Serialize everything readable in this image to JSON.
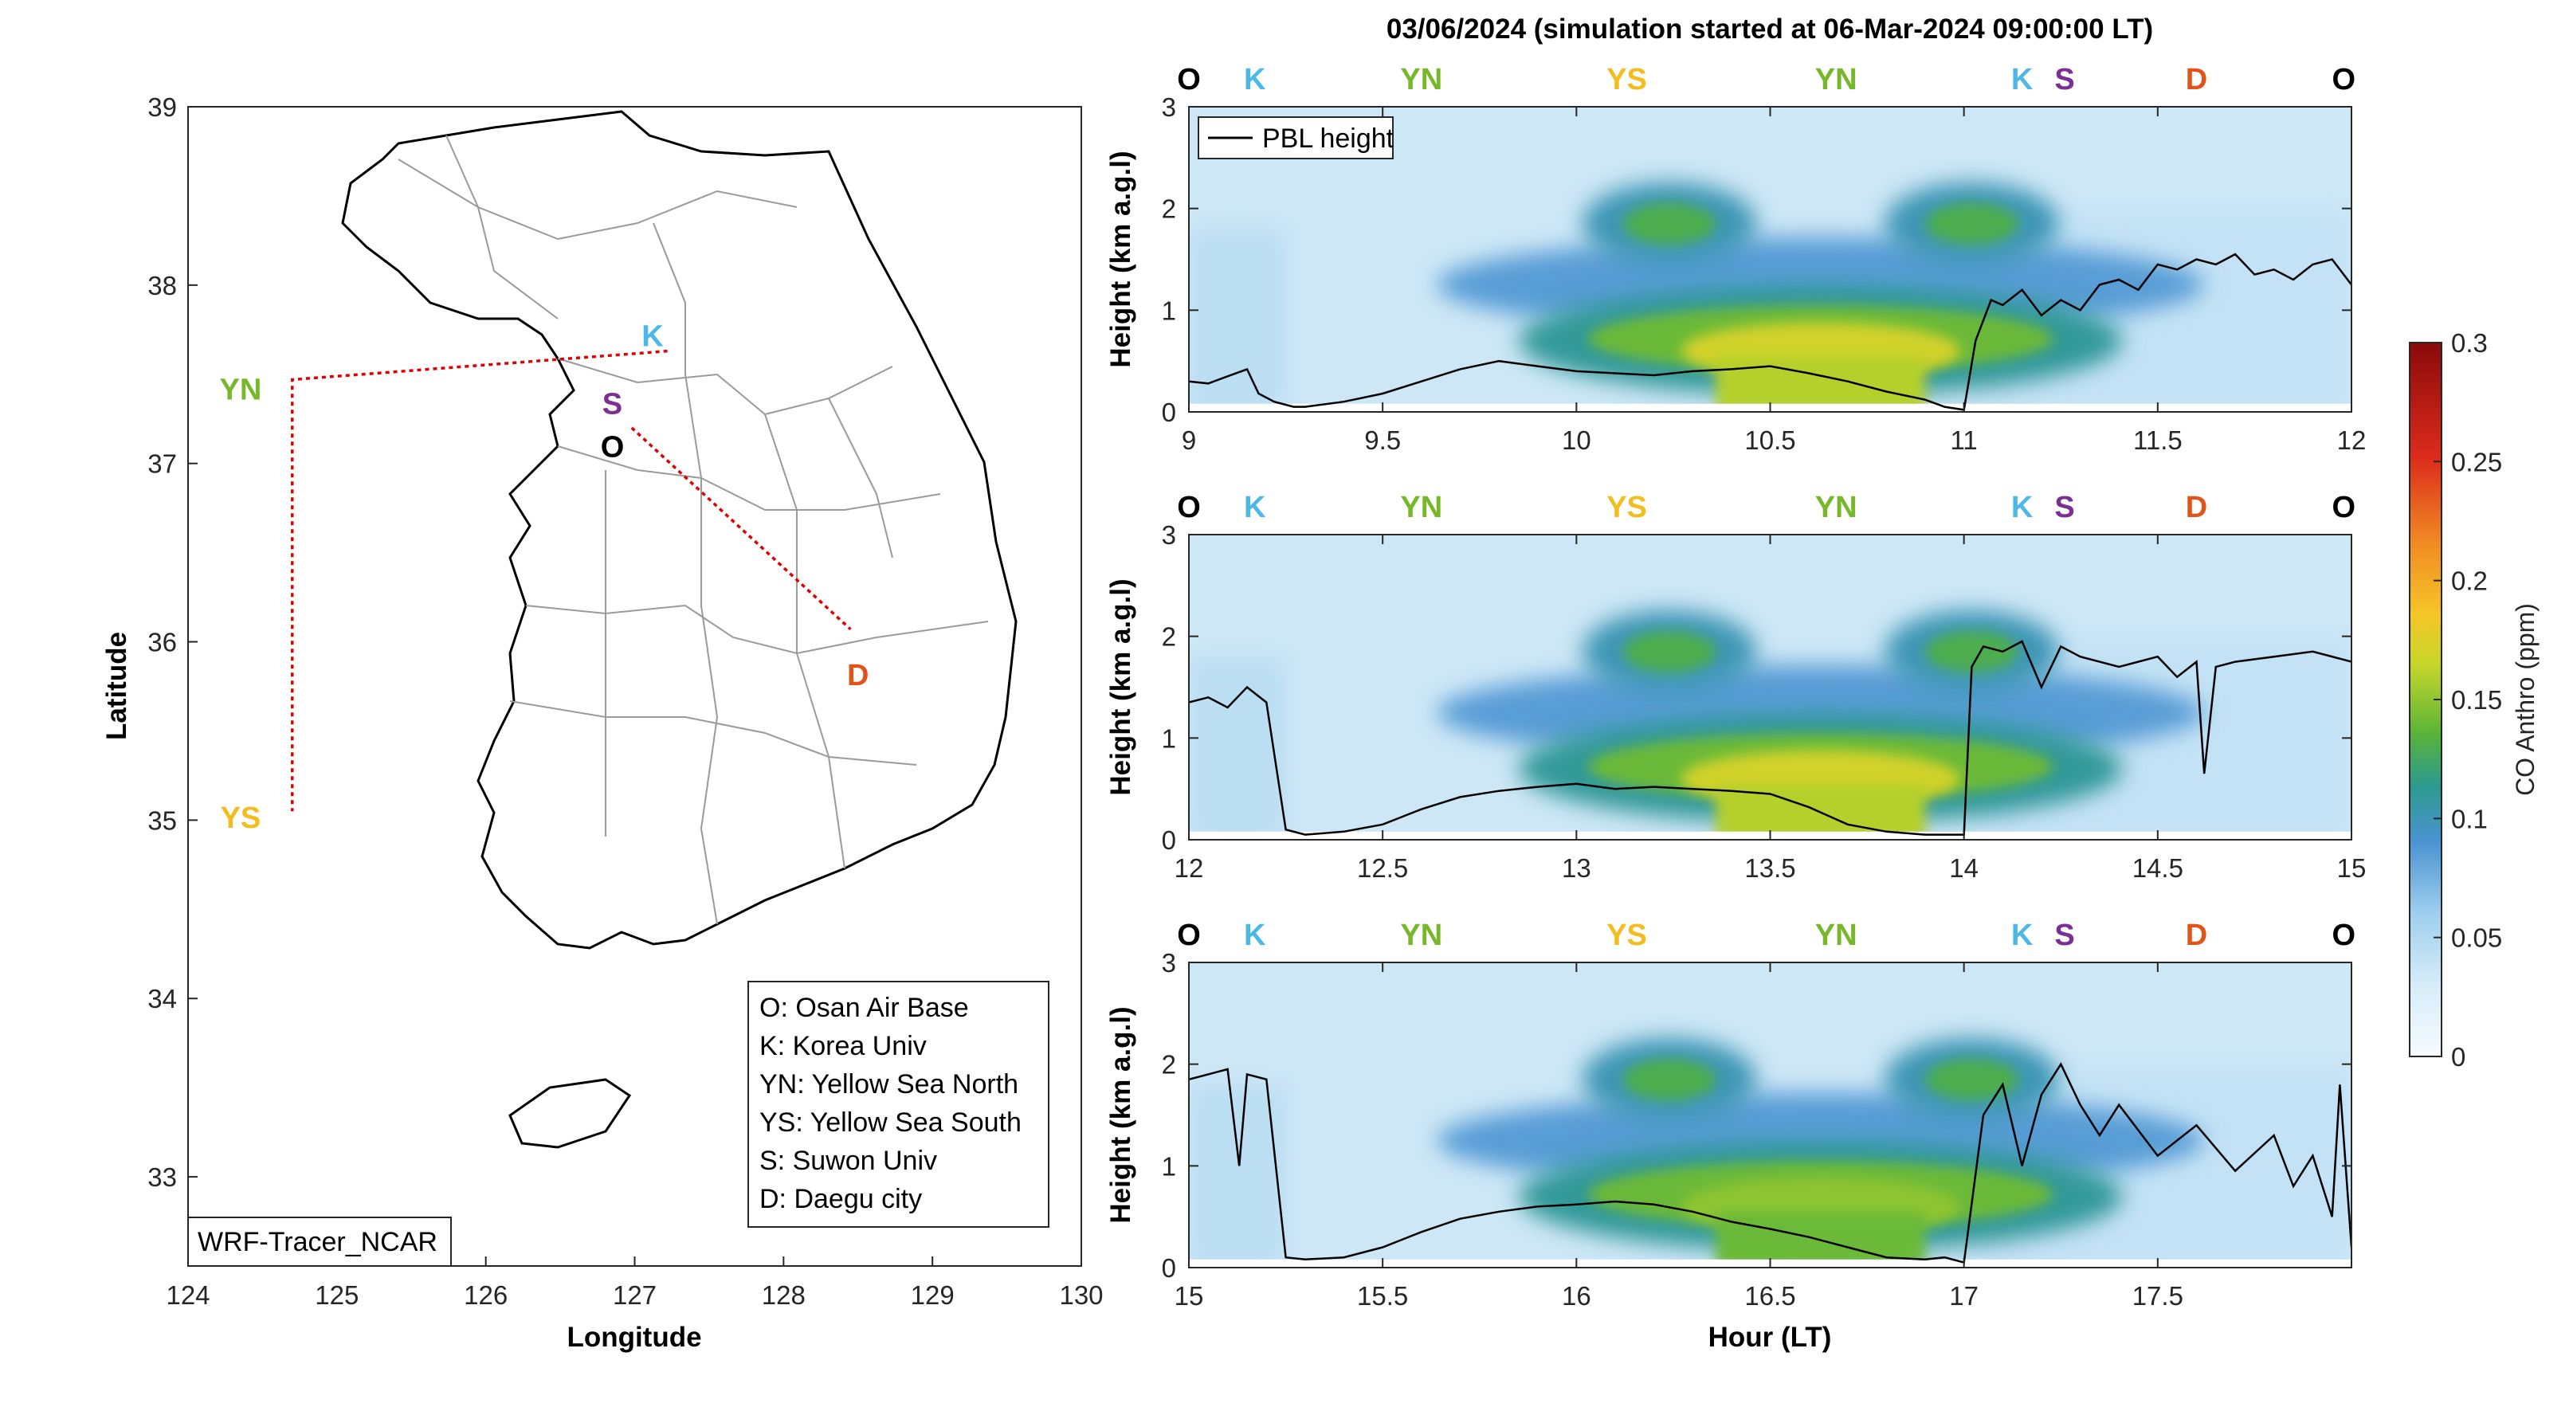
{
  "colors": {
    "O": "#000000",
    "K": "#4db8e6",
    "YN": "#76b82a",
    "YS": "#f2be1f",
    "S": "#7b2f95",
    "D": "#e0541a",
    "route": "#e00000",
    "pbl": "#000000"
  },
  "map": {
    "xlabel": "Longitude",
    "ylabel": "Latitude",
    "xticks": [
      "124",
      "125",
      "126",
      "127",
      "128",
      "129",
      "130"
    ],
    "yticks": [
      "39",
      "38",
      "37",
      "36",
      "35",
      "34",
      "33"
    ],
    "xlim": [
      124,
      130
    ],
    "ylim": [
      32.5,
      39
    ],
    "model_label": "WRF-Tracer_NCAR",
    "sites": [
      {
        "code": "O",
        "lon": 126.85,
        "lat": 37.1
      },
      {
        "code": "K",
        "lon": 127.12,
        "lat": 37.72
      },
      {
        "code": "YN",
        "lon": 123.55,
        "lat": 37.42
      },
      {
        "code": "YS",
        "lon": 123.55,
        "lat": 35.02
      },
      {
        "code": "S",
        "lon": 126.85,
        "lat": 37.34
      },
      {
        "code": "D",
        "lon": 128.5,
        "lat": 35.82
      }
    ],
    "route": [
      [
        127.22,
        37.63
      ],
      [
        124.7,
        37.47
      ],
      [
        124.7,
        35.05
      ]
    ],
    "route2": [
      [
        126.98,
        37.2
      ],
      [
        128.45,
        36.07
      ]
    ],
    "legend": [
      "O: Osan Air Base",
      "K: Korea Univ",
      "YN: Yellow Sea North",
      "YS: Yellow Sea South",
      "S: Suwon Univ",
      "D: Daegu city"
    ]
  },
  "title": "03/06/2024 (simulation started at 06-Mar-2024 09:00:00 LT)",
  "legend_pbl": "PBL height",
  "ylabel": "Height (km a.g.l)",
  "xlabel": "Hour (LT)",
  "colorbar": {
    "label": "CO Anthro (ppm)",
    "ticks": [
      "0",
      "0.05",
      "0.1",
      "0.15",
      "0.2",
      "0.25",
      "0.3"
    ],
    "range": [
      0,
      0.3
    ]
  },
  "chart_data": {
    "type": "heatmap",
    "yticks": [
      "0",
      "1",
      "2",
      "3"
    ],
    "ylim": [
      0,
      3
    ],
    "panels": [
      {
        "xlim": [
          9,
          12
        ],
        "xticks": [
          "9",
          "9.5",
          "10",
          "10.5",
          "11",
          "11.5",
          "12"
        ],
        "site_labels": [
          {
            "code": "O",
            "x": 9.0
          },
          {
            "code": "K",
            "x": 9.17
          },
          {
            "code": "YN",
            "x": 9.6
          },
          {
            "code": "YS",
            "x": 10.13
          },
          {
            "code": "YN",
            "x": 10.67
          },
          {
            "code": "K",
            "x": 11.15
          },
          {
            "code": "S",
            "x": 11.26
          },
          {
            "code": "D",
            "x": 11.6
          },
          {
            "code": "O",
            "x": 11.98
          }
        ],
        "pbl_x": [
          9.0,
          9.05,
          9.1,
          9.15,
          9.18,
          9.22,
          9.27,
          9.3,
          9.4,
          9.5,
          9.6,
          9.7,
          9.8,
          9.9,
          10.0,
          10.1,
          10.2,
          10.3,
          10.4,
          10.5,
          10.6,
          10.7,
          10.8,
          10.9,
          10.95,
          11.0,
          11.03,
          11.07,
          11.1,
          11.15,
          11.2,
          11.25,
          11.3,
          11.35,
          11.4,
          11.45,
          11.5,
          11.55,
          11.6,
          11.65,
          11.7,
          11.75,
          11.8,
          11.85,
          11.9,
          11.95,
          12.0
        ],
        "pbl_y": [
          0.3,
          0.28,
          0.35,
          0.42,
          0.18,
          0.1,
          0.05,
          0.05,
          0.1,
          0.18,
          0.3,
          0.42,
          0.5,
          0.45,
          0.4,
          0.38,
          0.36,
          0.4,
          0.42,
          0.45,
          0.38,
          0.3,
          0.2,
          0.12,
          0.05,
          0.02,
          0.7,
          1.1,
          1.05,
          1.2,
          0.95,
          1.1,
          1.0,
          1.25,
          1.3,
          1.2,
          1.45,
          1.4,
          1.5,
          1.45,
          1.55,
          1.35,
          1.4,
          1.3,
          1.45,
          1.5,
          1.25
        ],
        "max_conc": 0.17
      },
      {
        "xlim": [
          12,
          15
        ],
        "xticks": [
          "12",
          "12.5",
          "13",
          "13.5",
          "14",
          "14.5",
          "15"
        ],
        "site_labels": [
          {
            "code": "O",
            "x": 12.0
          },
          {
            "code": "K",
            "x": 12.17
          },
          {
            "code": "YN",
            "x": 12.6
          },
          {
            "code": "YS",
            "x": 13.13
          },
          {
            "code": "YN",
            "x": 13.67
          },
          {
            "code": "K",
            "x": 14.15
          },
          {
            "code": "S",
            "x": 14.26
          },
          {
            "code": "D",
            "x": 14.6
          },
          {
            "code": "O",
            "x": 14.98
          }
        ],
        "pbl_x": [
          12.0,
          12.05,
          12.1,
          12.15,
          12.2,
          12.25,
          12.3,
          12.4,
          12.5,
          12.6,
          12.7,
          12.8,
          12.9,
          13.0,
          13.1,
          13.2,
          13.3,
          13.4,
          13.5,
          13.6,
          13.7,
          13.8,
          13.9,
          14.0,
          14.02,
          14.05,
          14.1,
          14.15,
          14.2,
          14.25,
          14.3,
          14.4,
          14.5,
          14.55,
          14.6,
          14.62,
          14.65,
          14.7,
          14.8,
          14.9,
          15.0
        ],
        "pbl_y": [
          1.35,
          1.4,
          1.3,
          1.5,
          1.35,
          0.1,
          0.05,
          0.08,
          0.15,
          0.3,
          0.42,
          0.48,
          0.52,
          0.55,
          0.5,
          0.52,
          0.5,
          0.48,
          0.45,
          0.32,
          0.15,
          0.08,
          0.05,
          0.05,
          1.7,
          1.9,
          1.85,
          1.95,
          1.5,
          1.9,
          1.8,
          1.7,
          1.8,
          1.6,
          1.75,
          0.65,
          1.7,
          1.75,
          1.8,
          1.85,
          1.75
        ],
        "max_conc": 0.17
      },
      {
        "xlim": [
          15,
          18
        ],
        "xticks": [
          "15",
          "15.5",
          "16",
          "16.5",
          "17",
          "17.5"
        ],
        "site_labels": [
          {
            "code": "O",
            "x": 15.0
          },
          {
            "code": "K",
            "x": 15.17
          },
          {
            "code": "YN",
            "x": 15.6
          },
          {
            "code": "YS",
            "x": 16.13
          },
          {
            "code": "YN",
            "x": 16.67
          },
          {
            "code": "K",
            "x": 17.15
          },
          {
            "code": "S",
            "x": 17.26
          },
          {
            "code": "D",
            "x": 17.6
          },
          {
            "code": "O",
            "x": 17.98
          }
        ],
        "pbl_x": [
          15.0,
          15.05,
          15.1,
          15.13,
          15.15,
          15.2,
          15.25,
          15.3,
          15.4,
          15.5,
          15.6,
          15.7,
          15.8,
          15.9,
          16.0,
          16.1,
          16.2,
          16.3,
          16.4,
          16.5,
          16.6,
          16.7,
          16.8,
          16.9,
          16.95,
          17.0,
          17.05,
          17.1,
          17.15,
          17.2,
          17.25,
          17.3,
          17.35,
          17.4,
          17.5,
          17.6,
          17.7,
          17.8,
          17.85,
          17.9,
          17.95,
          17.97,
          18.0
        ],
        "pbl_y": [
          1.85,
          1.9,
          1.95,
          1.0,
          1.9,
          1.85,
          0.1,
          0.08,
          0.1,
          0.2,
          0.35,
          0.48,
          0.55,
          0.6,
          0.62,
          0.65,
          0.62,
          0.55,
          0.45,
          0.38,
          0.3,
          0.2,
          0.1,
          0.08,
          0.1,
          0.05,
          1.5,
          1.8,
          1.0,
          1.7,
          2.0,
          1.6,
          1.3,
          1.6,
          1.1,
          1.4,
          0.95,
          1.3,
          0.8,
          1.1,
          0.5,
          1.8,
          0.2
        ],
        "max_conc": 0.15
      }
    ]
  }
}
